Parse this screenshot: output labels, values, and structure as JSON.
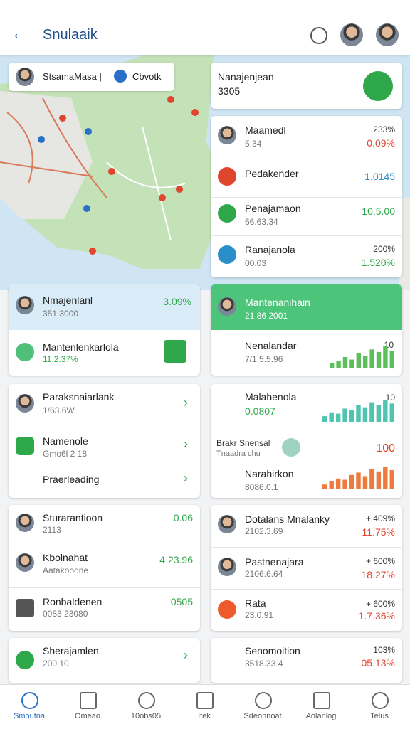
{
  "header": {
    "title": "Snulaaik"
  },
  "search": {
    "left": "StsamaMasa |",
    "right": "Cbvotk"
  },
  "summary": {
    "label": "Nanajenjean",
    "value": "3305"
  },
  "list": [
    {
      "name": "Maamedl",
      "sub": "5.34",
      "top": "233%",
      "bottom": "0.09%"
    },
    {
      "name": "Pedakender",
      "value": "1.0145"
    },
    {
      "name": "Penajamaon",
      "sub": "66.63.34",
      "value": "10.5.00"
    },
    {
      "name": "Ranajanola",
      "sub": "00.03",
      "top": "200%",
      "bottom": "1.520%"
    }
  ],
  "card_a": {
    "head": {
      "name": "Nmajenlanl",
      "sub": "351.3000",
      "value": "3.09%"
    },
    "row": {
      "name": "Mantenlenkarlola",
      "sub": "11.2.37%"
    }
  },
  "card_b": {
    "head": {
      "name": "Mantenanihain",
      "sub": "21 86 2001"
    },
    "row": {
      "name": "Nenalandar",
      "sub": "7/1.5.5.96",
      "value": "10",
      "bars": [
        4,
        6,
        9,
        7,
        12,
        10,
        15,
        13,
        18,
        14
      ]
    }
  },
  "card_c": [
    {
      "name": "Paraksnaiarlank",
      "sub": "1/63.6W"
    },
    {
      "name": "Namenole",
      "sub": "Gmo6l 2 18"
    },
    {
      "name": "Praerleading"
    }
  ],
  "card_d": [
    {
      "name": "Malahenola",
      "sub": "0.0807",
      "value": "10",
      "bars": [
        5,
        8,
        7,
        11,
        10,
        14,
        12,
        16,
        14,
        18,
        15
      ]
    },
    {
      "name": "Brakr Snensal",
      "sub": "Tnaadra chu",
      "value": "100"
    },
    {
      "name": "Narahirkon",
      "sub": "8086.0.1",
      "bars": [
        4,
        7,
        9,
        8,
        12,
        14,
        11,
        17,
        15,
        19,
        16
      ]
    }
  ],
  "card_e": [
    {
      "name": "Sturarantioon",
      "sub": "2113",
      "value": "0.06"
    },
    {
      "name": "Kbolnahat",
      "sub": "Aatakooone",
      "value": "4.23.96"
    },
    {
      "name": "Ronbaldenen",
      "sub": "0083 23080",
      "value": "0505"
    }
  ],
  "card_f": [
    {
      "name": "Dotalans Mnalanky",
      "sub": "2102.3.69",
      "top": "+ 409%",
      "bottom": "11.75%"
    },
    {
      "name": "Pastnenajara",
      "sub": "2106.6.64",
      "top": "+ 600%",
      "bottom": "18.27%"
    },
    {
      "name": "Rata",
      "sub": "23.0.91",
      "top": "+ 600%",
      "bottom": "1.7.36%"
    }
  ],
  "card_g": {
    "name": "Sherajamlen",
    "sub": "200.10"
  },
  "card_h": {
    "name": "Senomoition",
    "sub": "3518.33.4",
    "top": "103%",
    "bottom": "05.13%"
  },
  "nav": [
    "Smoutna",
    "Omeao",
    "10obs05",
    "Itek",
    "Sdeonnoat",
    "Aolanlog",
    "Telus"
  ]
}
